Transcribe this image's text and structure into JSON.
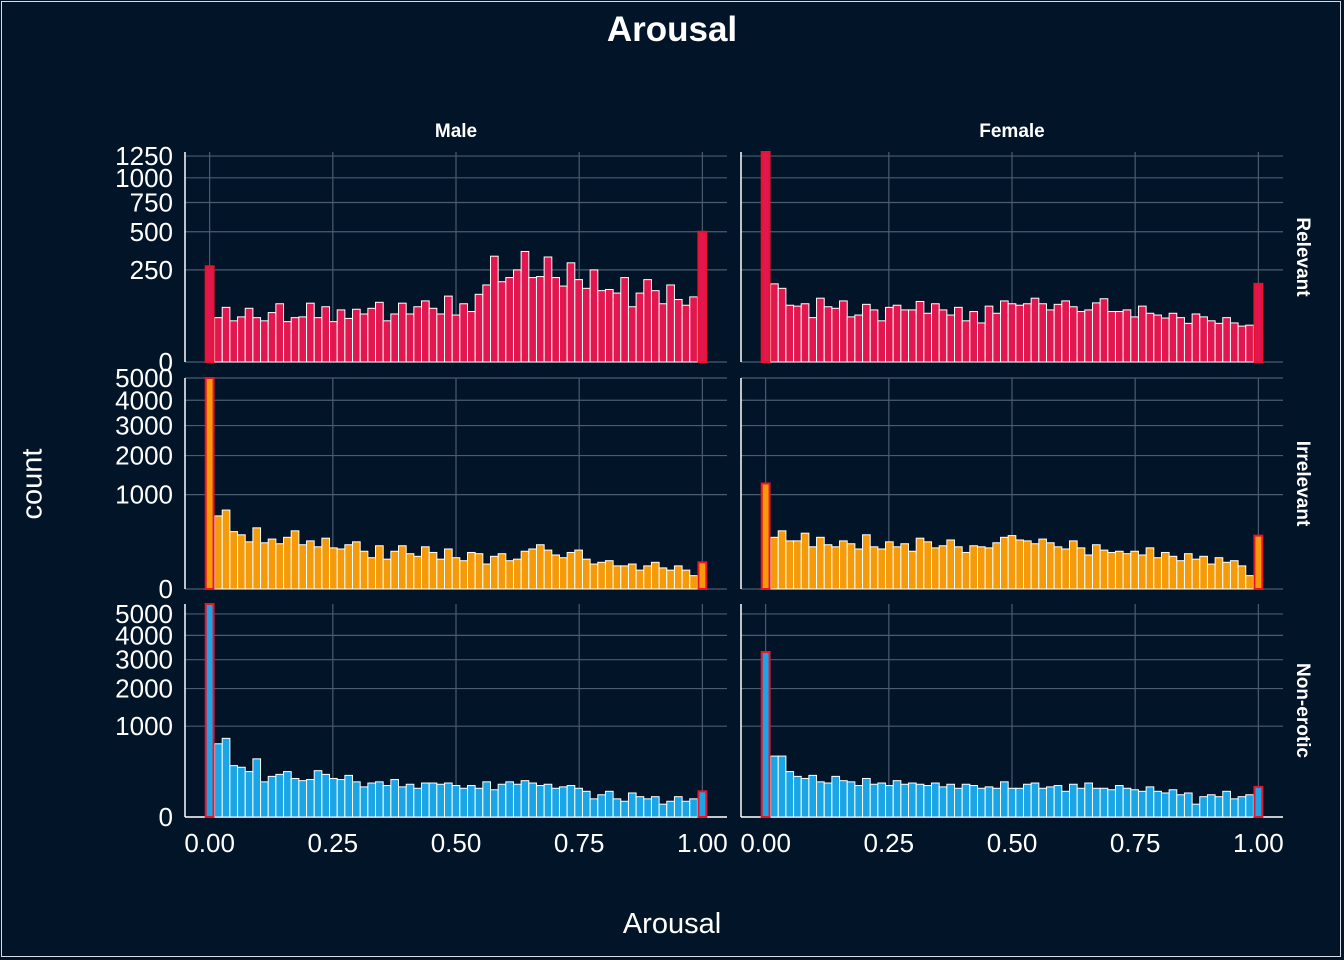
{
  "chart_data": {
    "type": "bar",
    "title": "Arousal",
    "xlabel": "Arousal",
    "ylabel": "count",
    "columns": [
      "Male",
      "Female"
    ],
    "rows": [
      "Relevant",
      "Irrelevant",
      "Non-erotic"
    ],
    "xlim": [
      -0.05,
      1.05
    ],
    "x_ticks": [
      0,
      0.25,
      0.5,
      0.75,
      1
    ],
    "x_tick_labels": [
      "0.00",
      "0.25",
      "0.50",
      "0.75",
      "1.00"
    ],
    "y_scale": "sqrt",
    "grid": true,
    "colors": {
      "background": "#011428",
      "grid": "#4b5b70",
      "bar_outline": "#ffffff",
      "edge_outline": "#e8142c",
      "Relevant": "#e3174f",
      "Irrelevant": "#f59a08",
      "Non-erotic": "#1aa6e6"
    },
    "panels": [
      {
        "sex": "Male",
        "condition": "Relevant",
        "y_ticks": [
          0,
          250,
          500,
          750,
          1000,
          1250
        ],
        "ylim": [
          0,
          1300
        ],
        "edge_bins": {
          "zero": 270,
          "one": 500
        },
        "counts": [
          58,
          88,
          50,
          60,
          85,
          58,
          50,
          72,
          100,
          48,
          58,
          60,
          102,
          58,
          90,
          48,
          80,
          56,
          82,
          68,
          85,
          105,
          50,
          68,
          102,
          68,
          90,
          110,
          85,
          68,
          128,
          65,
          100,
          75,
          135,
          175,
          330,
          190,
          210,
          250,
          360,
          210,
          215,
          325,
          210,
          170,
          290,
          200,
          160,
          250,
          150,
          155,
          140,
          210,
          90,
          140,
          200,
          150,
          100,
          175,
          115,
          95,
          125
        ]
      },
      {
        "sex": "Female",
        "condition": "Relevant",
        "y_ticks": [
          0,
          250,
          500,
          750,
          1000,
          1250
        ],
        "ylim": [
          0,
          1300
        ],
        "edge_bins": {
          "zero": 1300,
          "one": 180
        },
        "counts": [
          180,
          160,
          95,
          92,
          100,
          58,
          120,
          90,
          85,
          110,
          60,
          65,
          98,
          80,
          50,
          88,
          95,
          80,
          80,
          108,
          70,
          100,
          80,
          65,
          88,
          50,
          75,
          45,
          92,
          70,
          110,
          100,
          95,
          100,
          120,
          100,
          80,
          98,
          110,
          90,
          75,
          80,
          103,
          118,
          75,
          75,
          80,
          60,
          92,
          70,
          65,
          57,
          70,
          58,
          44,
          68,
          60,
          50,
          44,
          58,
          45,
          38,
          40
        ]
      },
      {
        "sex": "Male",
        "condition": "Irrelevant",
        "y_ticks": [
          0,
          1000,
          2000,
          3000,
          4000,
          5000
        ],
        "ylim": [
          0,
          5000
        ],
        "edge_bins": {
          "zero": 5200,
          "one": 80
        },
        "counts": [
          600,
          700,
          370,
          330,
          250,
          420,
          240,
          280,
          230,
          300,
          380,
          220,
          260,
          200,
          290,
          190,
          180,
          220,
          250,
          160,
          110,
          210,
          100,
          160,
          210,
          140,
          120,
          200,
          150,
          100,
          180,
          110,
          90,
          150,
          140,
          70,
          120,
          140,
          90,
          100,
          160,
          180,
          220,
          170,
          130,
          110,
          150,
          170,
          100,
          70,
          80,
          90,
          60,
          60,
          70,
          40,
          60,
          80,
          50,
          40,
          60,
          40,
          20
        ]
      },
      {
        "sex": "Female",
        "condition": "Irrelevant",
        "y_ticks": [
          0,
          1000,
          2000,
          3000,
          4000,
          5000
        ],
        "ylim": [
          0,
          5000
        ],
        "edge_bins": {
          "zero": 1250,
          "one": 320
        },
        "counts": [
          300,
          380,
          260,
          260,
          350,
          200,
          300,
          220,
          200,
          260,
          230,
          180,
          330,
          200,
          180,
          250,
          200,
          230,
          160,
          290,
          250,
          190,
          210,
          270,
          200,
          150,
          210,
          200,
          190,
          240,
          300,
          320,
          270,
          260,
          230,
          280,
          240,
          200,
          180,
          260,
          190,
          130,
          220,
          170,
          150,
          160,
          140,
          160,
          130,
          190,
          110,
          150,
          120,
          90,
          140,
          100,
          120,
          70,
          110,
          80,
          90,
          60,
          20
        ]
      },
      {
        "sex": "Male",
        "condition": "Non-erotic",
        "y_ticks": [
          0,
          1000,
          2000,
          3000,
          4000,
          5000
        ],
        "ylim": [
          0,
          5500
        ],
        "edge_bins": {
          "zero": 5500,
          "one": 80
        },
        "counts": [
          650,
          750,
          320,
          300,
          250,
          410,
          150,
          200,
          220,
          250,
          180,
          160,
          170,
          260,
          220,
          180,
          170,
          210,
          150,
          110,
          140,
          150,
          120,
          170,
          110,
          130,
          100,
          140,
          140,
          130,
          140,
          120,
          100,
          120,
          100,
          150,
          90,
          130,
          150,
          130,
          160,
          140,
          120,
          130,
          100,
          110,
          120,
          100,
          80,
          40,
          60,
          80,
          40,
          30,
          70,
          50,
          40,
          50,
          20,
          30,
          50,
          30,
          40
        ]
      },
      {
        "sex": "Female",
        "condition": "Non-erotic",
        "y_ticks": [
          0,
          1000,
          2000,
          3000,
          4000,
          5000
        ],
        "ylim": [
          0,
          5500
        ],
        "edge_bins": {
          "zero": 3300,
          "one": 110
        },
        "counts": [
          450,
          450,
          250,
          200,
          180,
          210,
          150,
          140,
          200,
          160,
          150,
          120,
          180,
          130,
          140,
          120,
          160,
          130,
          140,
          130,
          120,
          140,
          110,
          130,
          100,
          130,
          120,
          100,
          110,
          100,
          150,
          100,
          100,
          130,
          140,
          100,
          110,
          120,
          80,
          130,
          100,
          140,
          100,
          100,
          90,
          120,
          100,
          90,
          80,
          110,
          80,
          70,
          90,
          60,
          70,
          20,
          50,
          60,
          50,
          80,
          40,
          50,
          60
        ]
      }
    ]
  }
}
